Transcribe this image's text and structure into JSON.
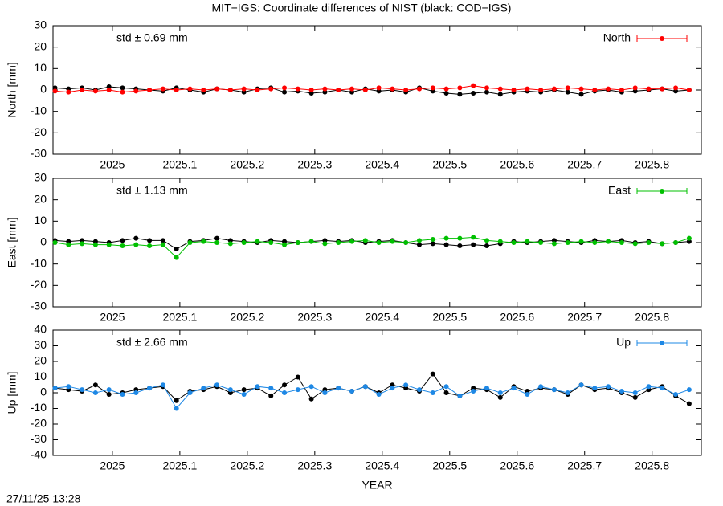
{
  "title": "MIT−IGS: Coordinate differences of NIST (black: COD−IGS)",
  "timestamp": "27/11/25 13:28",
  "chart_data": [
    {
      "type": "line",
      "ylabel": "North [mm]",
      "annotation": "std ± 0.69 mm",
      "legend": "top right",
      "xlim": [
        2024.912,
        2025.873
      ],
      "xticks": [
        2025,
        2025.1,
        2025.2,
        2025.3,
        2025.4,
        2025.5,
        2025.6,
        2025.7,
        2025.8
      ],
      "ylim": [
        -30,
        30
      ],
      "yticks": [
        -30,
        -20,
        -10,
        0,
        10,
        20,
        30
      ],
      "x": [
        2024.915,
        2024.935,
        2024.955,
        2024.975,
        2024.995,
        2025.015,
        2025.035,
        2025.055,
        2025.075,
        2025.095,
        2025.115,
        2025.135,
        2025.155,
        2025.175,
        2025.195,
        2025.215,
        2025.235,
        2025.255,
        2025.275,
        2025.295,
        2025.315,
        2025.335,
        2025.355,
        2025.375,
        2025.395,
        2025.415,
        2025.435,
        2025.455,
        2025.475,
        2025.495,
        2025.515,
        2025.535,
        2025.555,
        2025.575,
        2025.595,
        2025.615,
        2025.635,
        2025.655,
        2025.675,
        2025.695,
        2025.715,
        2025.735,
        2025.755,
        2025.775,
        2025.795,
        2025.815,
        2025.835,
        2025.855
      ],
      "series": [
        {
          "color": "#000000",
          "values": [
            1,
            0.5,
            1,
            0,
            1.5,
            1,
            0.5,
            0,
            -0.5,
            1,
            0,
            -1,
            0.5,
            0,
            -1,
            0.5,
            1,
            -1,
            -0.5,
            -1.5,
            -1,
            0,
            -1,
            0.5,
            -0.5,
            0,
            -1,
            1,
            -0.5,
            -1.5,
            -2,
            -1.5,
            -1,
            -2,
            -1,
            -0.5,
            -1,
            0,
            -1,
            -2,
            -0.5,
            0,
            -1,
            -0.5,
            0,
            0.5,
            -0.5,
            0
          ]
        },
        {
          "name": "North",
          "color": "#ff0000",
          "values": [
            -0.5,
            -1,
            0,
            -0.5,
            0,
            -1,
            -0.5,
            0,
            0.5,
            0,
            0.5,
            0,
            0.5,
            0,
            0.5,
            0,
            0.5,
            1,
            0.5,
            0,
            0.5,
            0,
            0.5,
            0,
            1,
            0.5,
            0,
            0.5,
            1,
            0.5,
            1,
            2,
            1,
            0.5,
            0,
            0.5,
            0,
            0.5,
            1,
            0.5,
            0,
            0.5,
            0,
            1,
            0.5,
            0.5,
            1,
            0
          ]
        }
      ]
    },
    {
      "type": "line",
      "ylabel": "East [mm]",
      "annotation": "std ± 1.13 mm",
      "legend": "top right",
      "xlim": [
        2024.912,
        2025.873
      ],
      "xticks": [
        2025,
        2025.1,
        2025.2,
        2025.3,
        2025.4,
        2025.5,
        2025.6,
        2025.7,
        2025.8
      ],
      "ylim": [
        -30,
        30
      ],
      "yticks": [
        -30,
        -20,
        -10,
        0,
        10,
        20,
        30
      ],
      "x": [
        2024.915,
        2024.935,
        2024.955,
        2024.975,
        2024.995,
        2025.015,
        2025.035,
        2025.055,
        2025.075,
        2025.095,
        2025.115,
        2025.135,
        2025.155,
        2025.175,
        2025.195,
        2025.215,
        2025.235,
        2025.255,
        2025.275,
        2025.295,
        2025.315,
        2025.335,
        2025.355,
        2025.375,
        2025.395,
        2025.415,
        2025.435,
        2025.455,
        2025.475,
        2025.495,
        2025.515,
        2025.535,
        2025.555,
        2025.575,
        2025.595,
        2025.615,
        2025.635,
        2025.655,
        2025.675,
        2025.695,
        2025.715,
        2025.735,
        2025.755,
        2025.775,
        2025.795,
        2025.815,
        2025.835,
        2025.855
      ],
      "series": [
        {
          "color": "#000000",
          "values": [
            1,
            0.5,
            1,
            0.5,
            0,
            1,
            2,
            1,
            1,
            -3,
            0.5,
            1,
            2,
            1,
            0.5,
            0,
            1,
            0.5,
            0,
            0.5,
            1,
            0.5,
            1,
            0,
            0.5,
            1,
            0,
            -1,
            -0.5,
            -1,
            -1.5,
            -1,
            -1.5,
            -0.5,
            0.5,
            0,
            0.5,
            1,
            0.5,
            0,
            1,
            0.5,
            1,
            0,
            0.5,
            -0.5,
            0,
            0.5
          ]
        },
        {
          "name": "East",
          "color": "#00c000",
          "values": [
            0,
            -1,
            -0.5,
            -1,
            -1,
            -1.5,
            -1,
            -1.5,
            -1,
            -7,
            0,
            0.5,
            0,
            -0.5,
            0,
            0.5,
            0,
            -1,
            0,
            0.5,
            -0.5,
            0,
            0.5,
            1,
            0,
            0.5,
            0,
            1,
            1.5,
            2,
            2,
            2.5,
            1,
            0.5,
            0,
            0.5,
            0,
            -0.5,
            0,
            0.5,
            0,
            0.5,
            0,
            -0.5,
            0,
            -0.5,
            0,
            2
          ]
        }
      ]
    },
    {
      "type": "line",
      "ylabel": "Up [mm]",
      "annotation": "std ± 2.66 mm",
      "legend": "top right",
      "xlabel": "YEAR",
      "xlim": [
        2024.912,
        2025.873
      ],
      "xticks": [
        2025,
        2025.1,
        2025.2,
        2025.3,
        2025.4,
        2025.5,
        2025.6,
        2025.7,
        2025.8
      ],
      "ylim": [
        -40,
        40
      ],
      "yticks": [
        -40,
        -30,
        -20,
        -10,
        0,
        10,
        20,
        30,
        40
      ],
      "x": [
        2024.915,
        2024.935,
        2024.955,
        2024.975,
        2024.995,
        2025.015,
        2025.035,
        2025.055,
        2025.075,
        2025.095,
        2025.115,
        2025.135,
        2025.155,
        2025.175,
        2025.195,
        2025.215,
        2025.235,
        2025.255,
        2025.275,
        2025.295,
        2025.315,
        2025.335,
        2025.355,
        2025.375,
        2025.395,
        2025.415,
        2025.435,
        2025.455,
        2025.475,
        2025.495,
        2025.515,
        2025.535,
        2025.555,
        2025.575,
        2025.595,
        2025.615,
        2025.635,
        2025.655,
        2025.675,
        2025.695,
        2025.715,
        2025.735,
        2025.755,
        2025.775,
        2025.795,
        2025.815,
        2025.835,
        2025.855
      ],
      "series": [
        {
          "color": "#000000",
          "values": [
            3,
            2,
            1,
            5,
            -1,
            0,
            2,
            3,
            4,
            -5,
            1,
            2,
            4,
            0,
            2,
            3,
            -2,
            5,
            10,
            -4,
            2,
            3,
            1,
            4,
            0,
            5,
            3,
            1,
            12,
            0,
            -2,
            3,
            2,
            -3,
            4,
            1,
            3,
            2,
            -1,
            5,
            2,
            3,
            0,
            -3,
            2,
            4,
            -2,
            -7
          ]
        },
        {
          "name": "Up",
          "color": "#1e88e5",
          "values": [
            3,
            4,
            2,
            0,
            2,
            -1,
            0,
            3,
            5,
            -10,
            0,
            3,
            5,
            2,
            -1,
            4,
            3,
            0,
            2,
            4,
            0,
            3,
            1,
            4,
            -1,
            3,
            5,
            2,
            0,
            4,
            -2,
            1,
            3,
            0,
            3,
            -1,
            4,
            2,
            0,
            5,
            3,
            4,
            1,
            0,
            4,
            3,
            -1,
            2
          ]
        }
      ]
    }
  ]
}
